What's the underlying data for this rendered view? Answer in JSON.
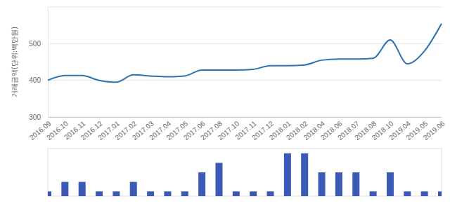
{
  "chart_data": {
    "type": "line",
    "y_label": "거래금액(단위:백만원)",
    "categories": [
      "2016.09",
      "2016.10",
      "2016.11",
      "2016.12",
      "2017.01",
      "2017.02",
      "2017.03",
      "2017.04",
      "2017.05",
      "2017.06",
      "2017.08",
      "2017.10",
      "2017.11",
      "2017.12",
      "2018.01",
      "2018.02",
      "2018.04",
      "2018.06",
      "2018.07",
      "2018.08",
      "2018.10",
      "2019.04",
      "2019.05",
      "2019.06"
    ],
    "series": [
      {
        "type": "line",
        "color": "#2c73b3",
        "values": [
          400,
          413,
          413,
          400,
          395,
          415,
          412,
          410,
          412,
          428,
          428,
          428,
          430,
          440,
          440,
          442,
          455,
          458,
          458,
          460,
          510,
          445,
          480,
          555
        ]
      },
      {
        "type": "bar",
        "axis": "y2",
        "color": "#3b5ab5",
        "values": [
          1,
          3,
          3,
          1,
          1,
          3,
          1,
          1,
          1,
          5,
          7,
          1,
          1,
          1,
          9,
          9,
          5,
          5,
          5,
          1,
          5,
          1,
          1,
          1
        ]
      }
    ],
    "ylim": [
      300,
      600
    ],
    "yticks": [
      300,
      400,
      500
    ],
    "y2lim": [
      0,
      10
    ],
    "grid": true
  }
}
